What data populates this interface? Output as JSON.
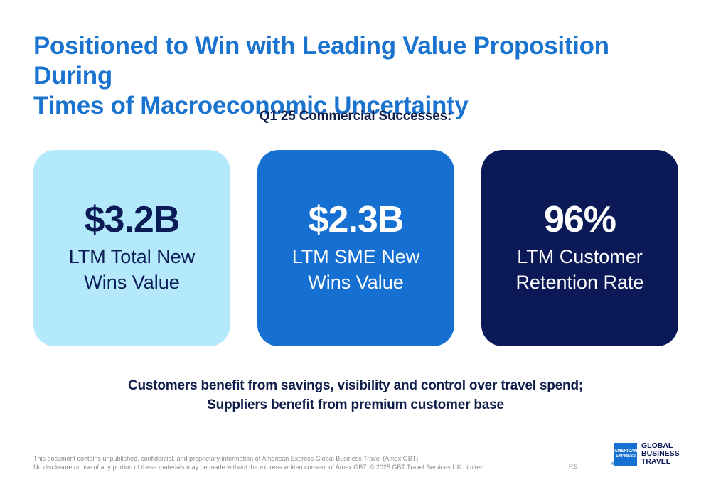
{
  "header": {
    "title_line1": "Positioned to Win with Leading Value Proposition During",
    "title_line2": "Times of Macroeconomic Uncertainty",
    "subtitle": "Q1’25 Commercial Successes:"
  },
  "cards": [
    {
      "value": "$3.2B",
      "label_line1": "LTM Total New",
      "label_line2": "Wins Value"
    },
    {
      "value": "$2.3B",
      "label_line1": "LTM SME New",
      "label_line2": "Wins Value"
    },
    {
      "value": "96%",
      "label_line1": "LTM Customer",
      "label_line2": "Retention Rate"
    }
  ],
  "tagline": {
    "line1": "Customers benefit from savings, visibility and control over travel spend;",
    "line2": "Suppliers benefit from premium customer base"
  },
  "footer": {
    "disclaimer_line1": "This document contains unpublished, confidential, and proprietary information of American Express Global Business Travel (Amex GBT).",
    "disclaimer_line2": "No disclosure or use of any portion of these materials may be made without the express written consent of Amex GBT. © 2025 GBT Travel Services UK Limited.",
    "page": "P.9"
  },
  "logo": {
    "box_line1": "AMERICAN",
    "box_line2": "EXPRESS",
    "text_line1": "GLOBAL",
    "text_line2": "BUSINESS",
    "text_line3": "TRAVEL"
  },
  "colors": {
    "title": "#1a73cf",
    "navy": "#0b1a57",
    "light_blue": "#b4e9fc",
    "mid_blue": "#1670d1"
  }
}
